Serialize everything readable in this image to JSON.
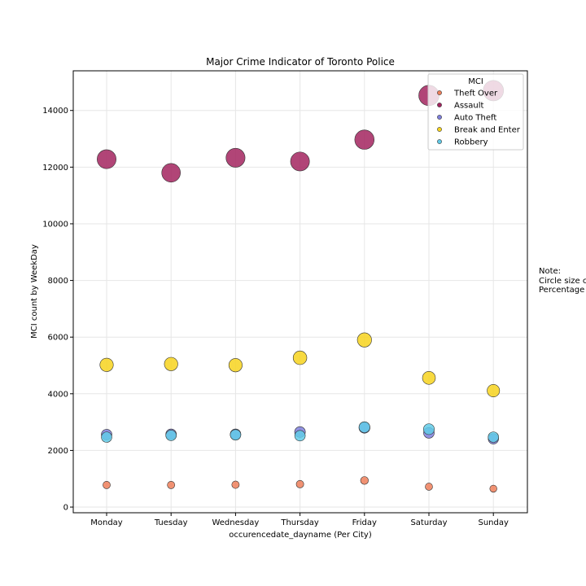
{
  "chart_data": {
    "type": "scatter",
    "title": "Major Crime Indicator of Toronto Police",
    "xlabel": "occurencedate_dayname (Per City)",
    "ylabel": "MCI count by WeekDay",
    "categories": [
      "Monday",
      "Tuesday",
      "Wednesday",
      "Thursday",
      "Friday",
      "Saturday",
      "Sunday"
    ],
    "ylim": [
      -200,
      15400
    ],
    "yticks": [
      0,
      2000,
      4000,
      6000,
      8000,
      10000,
      12000,
      14000
    ],
    "grid": true,
    "legend": {
      "title": "MCI",
      "placement": "top-right"
    },
    "series": [
      {
        "name": "Theft Over",
        "color": "#ef7f5a",
        "values": [
          780,
          780,
          790,
          810,
          940,
          720,
          650
        ]
      },
      {
        "name": "Assault",
        "color": "#a3245f",
        "values": [
          12280,
          11800,
          12330,
          12200,
          12970,
          14530,
          14700
        ]
      },
      {
        "name": "Auto Theft",
        "color": "#7e7fdc",
        "values": [
          2560,
          2570,
          2570,
          2650,
          2800,
          2620,
          2410
        ]
      },
      {
        "name": "Break and Enter",
        "color": "#f7d41e",
        "values": [
          5020,
          5050,
          5010,
          5270,
          5900,
          4560,
          4110
        ]
      },
      {
        "name": "Robbery",
        "color": "#62cbe8",
        "values": [
          2470,
          2530,
          2550,
          2520,
          2820,
          2750,
          2470
        ]
      }
    ]
  },
  "note": {
    "line1": "Note:",
    "line2": "Circle size c",
    "line3": "Percentage"
  }
}
